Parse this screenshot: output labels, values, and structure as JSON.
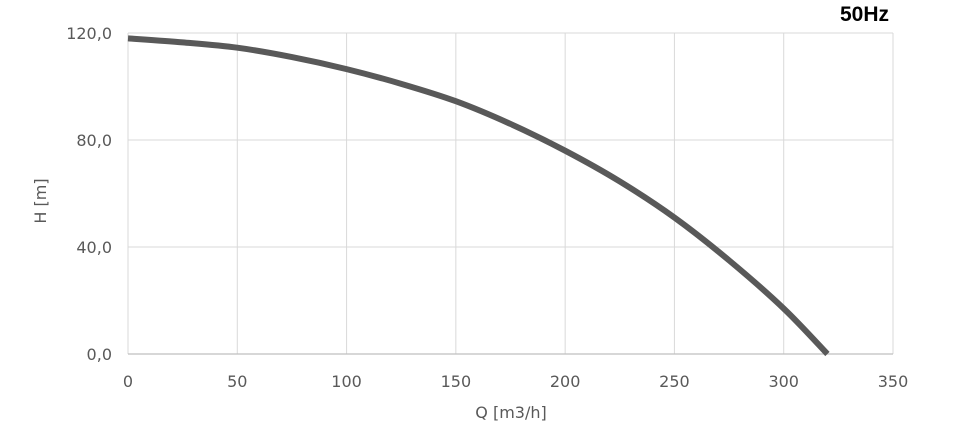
{
  "chart_data": {
    "type": "line",
    "title": "",
    "annotation": "50Hz",
    "xlabel": "Q [m3/h]",
    "ylabel": "H [m]",
    "xlim": [
      0,
      350
    ],
    "ylim": [
      0,
      120
    ],
    "x_ticks": [
      0,
      50,
      100,
      150,
      200,
      250,
      300,
      350
    ],
    "x_tick_labels": [
      "0",
      "50",
      "100",
      "150",
      "200",
      "250",
      "300",
      "350"
    ],
    "y_ticks": [
      0,
      40,
      80,
      120
    ],
    "y_tick_labels": [
      "0,0",
      "40,0",
      "80,0",
      "120,0"
    ],
    "grid": true,
    "legend": "none",
    "series": [
      {
        "color": "#595959",
        "x": [
          0,
          25,
          50,
          75,
          100,
          125,
          150,
          175,
          200,
          225,
          250,
          275,
          300,
          320
        ],
        "y": [
          118,
          116.5,
          114.5,
          111,
          106.5,
          101,
          94.5,
          86,
          76,
          64.5,
          51,
          35,
          17,
          0
        ]
      }
    ]
  }
}
